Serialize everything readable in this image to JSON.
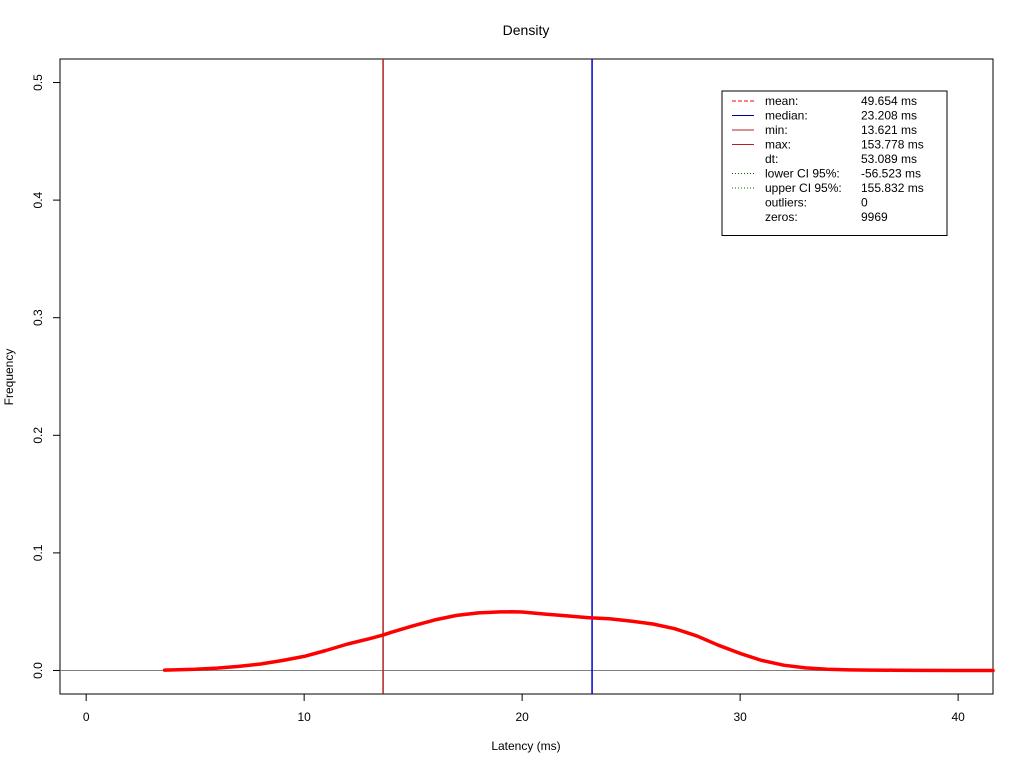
{
  "chart_data": {
    "type": "line",
    "title": "Density",
    "xlabel": "Latency (ms)",
    "ylabel": "Frequency",
    "xlim": [
      -1.2,
      41.6
    ],
    "ylim": [
      -0.02,
      0.52
    ],
    "x_ticks": [
      0,
      10,
      20,
      30,
      40
    ],
    "x_tick_labels": [
      "0",
      "10",
      "20",
      "30",
      "40"
    ],
    "y_ticks": [
      0.0,
      0.1,
      0.2,
      0.3,
      0.4,
      0.5
    ],
    "y_tick_labels": [
      "0.0",
      "0.1",
      "0.2",
      "0.3",
      "0.4",
      "0.5"
    ],
    "grid": false,
    "legend_position": "top-right",
    "baseline": {
      "y": 0,
      "color": "#808080"
    },
    "series": [
      {
        "color": "#ff0000",
        "x": [
          3.6,
          5,
          6,
          7,
          8,
          9,
          10,
          11,
          12,
          13,
          13.6,
          14,
          15,
          16,
          17,
          18,
          19,
          19.5,
          20,
          21,
          22,
          23,
          23.2,
          24,
          25,
          26,
          27,
          28,
          29,
          30,
          31,
          32,
          33,
          34,
          35,
          36,
          37,
          38,
          40,
          41.6
        ],
        "y": [
          0.0003,
          0.001,
          0.002,
          0.0035,
          0.0055,
          0.0085,
          0.012,
          0.017,
          0.0225,
          0.027,
          0.03,
          0.0325,
          0.038,
          0.043,
          0.0468,
          0.049,
          0.0498,
          0.0499,
          0.0497,
          0.048,
          0.0465,
          0.045,
          0.0447,
          0.044,
          0.042,
          0.0395,
          0.0355,
          0.0295,
          0.0215,
          0.0145,
          0.0085,
          0.0045,
          0.0022,
          0.001,
          0.0005,
          0.0003,
          0.0002,
          0.0001,
          0.0,
          0.0
        ]
      }
    ],
    "vlines": [
      {
        "name": "min",
        "x": 13.621,
        "color": "#b22222"
      },
      {
        "name": "median",
        "x": 23.208,
        "color": "#0000cd"
      }
    ],
    "legend": {
      "entries": [
        {
          "label": "mean:",
          "value": "49.654 ms",
          "color": "#ff0000",
          "dash": "dashed"
        },
        {
          "label": "median:",
          "value": "23.208 ms",
          "color": "#00008b",
          "dash": "solid"
        },
        {
          "label": "min:",
          "value": "13.621 ms",
          "color": "#b22222",
          "dash": "solid"
        },
        {
          "label": "max:",
          "value": "153.778 ms",
          "color": "#b22222",
          "dash": "solid"
        },
        {
          "label": "dt:",
          "value": "53.089 ms",
          "color": "",
          "dash": "none"
        },
        {
          "label": "lower CI 95%:",
          "value": "-56.523 ms",
          "color": "#006400",
          "dash": "dotted"
        },
        {
          "label": "upper CI 95%:",
          "value": "155.832 ms",
          "color": "#006400",
          "dash": "dotted"
        },
        {
          "label": "outliers:",
          "value": "0",
          "color": "",
          "dash": "none"
        },
        {
          "label": "zeros:",
          "value": "9969",
          "color": "",
          "dash": "none"
        }
      ]
    }
  }
}
